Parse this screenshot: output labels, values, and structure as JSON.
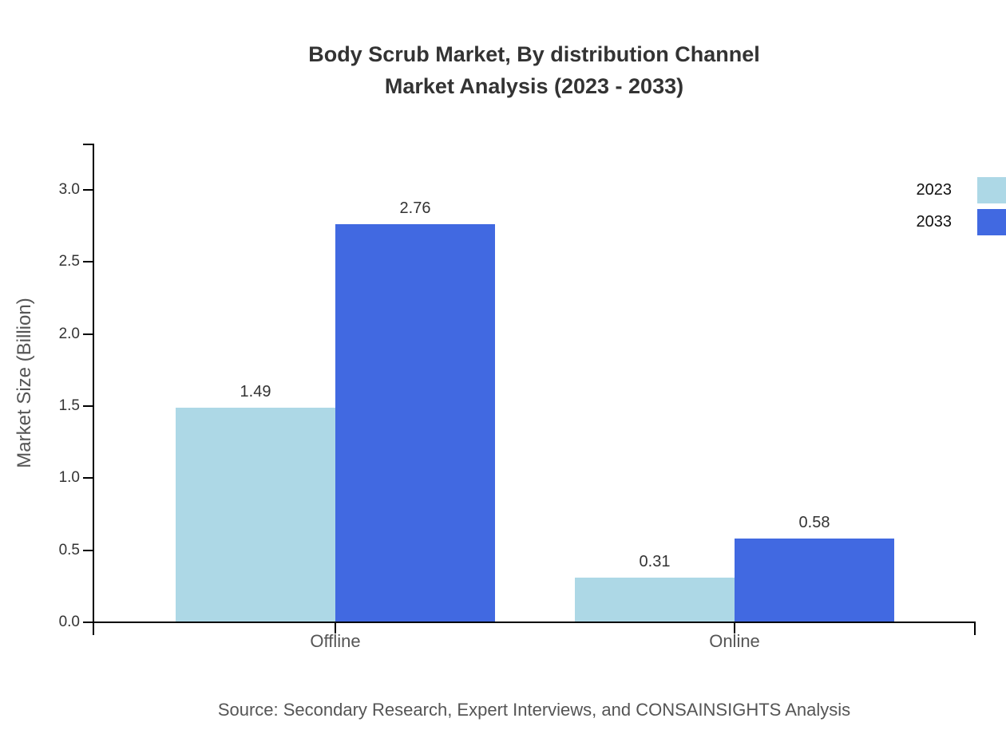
{
  "title": "Body Scrub Market, By distribution Channel",
  "subtitle": "Market Analysis (2023 - 2033)",
  "source_note": "Source: Secondary Research, Expert Interviews, and CONSAINSIGHTS Analysis",
  "colors": {
    "series_2023": "#ADD8E6",
    "series_2033": "#4169E1",
    "axis": "#000000",
    "title_text": "#333333",
    "muted_text": "#555555",
    "legend_text": "#111111"
  },
  "chart_data": {
    "type": "bar",
    "title": "Body Scrub Market, By distribution Channel Market Analysis (2023 - 2033)",
    "categories": [
      "Offline",
      "Online"
    ],
    "series": [
      {
        "name": "2023",
        "values": [
          1.49,
          0.31
        ],
        "color": "#ADD8E6"
      },
      {
        "name": "2033",
        "values": [
          2.76,
          0.58
        ],
        "color": "#4169E1"
      }
    ],
    "xlabel": "",
    "ylabel": "Market Size (Billion)",
    "ylim": [
      0,
      3.32
    ],
    "yticks": [
      0.0,
      0.5,
      1.0,
      1.5,
      2.0,
      2.5,
      3.0
    ],
    "grid": false,
    "legend_position": "top-right",
    "bar_value_decimals": 2,
    "bar_value_labels": [
      "1.49",
      "0.31",
      "2.76",
      "0.58"
    ]
  }
}
